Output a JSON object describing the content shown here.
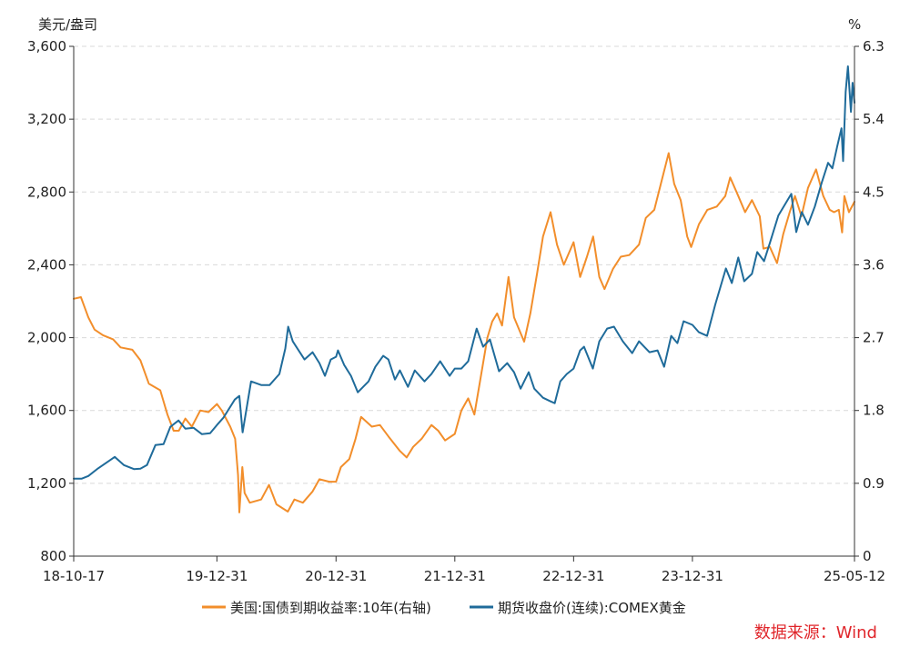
{
  "chart_data": {
    "type": "line",
    "left_axis_unit": "美元/盎司",
    "right_axis_unit": "%",
    "left_ylim": [
      800,
      3600
    ],
    "left_ticks": [
      "800",
      "1,200",
      "1,600",
      "2,000",
      "2,400",
      "2,800",
      "3,200",
      "3,600"
    ],
    "left_tick_values": [
      800,
      1200,
      1600,
      2000,
      2400,
      2800,
      3200,
      3600
    ],
    "right_ylim": [
      0,
      6.3
    ],
    "right_ticks": [
      "0",
      "0.9",
      "1.8",
      "2.7",
      "3.6",
      "4.5",
      "5.4",
      "6.3"
    ],
    "right_tick_values": [
      0,
      0.9,
      1.8,
      2.7,
      3.6,
      4.5,
      5.4,
      6.3
    ],
    "x_range": [
      "2018-10-17",
      "2025-05-12"
    ],
    "x_ticks": [
      {
        "label": "18-10-17",
        "date": "2018-10-17"
      },
      {
        "label": "19-12-31",
        "date": "2019-12-31"
      },
      {
        "label": "20-12-31",
        "date": "2020-12-31"
      },
      {
        "label": "21-12-31",
        "date": "2021-12-31"
      },
      {
        "label": "22-12-31",
        "date": "2022-12-31"
      },
      {
        "label": "23-12-31",
        "date": "2023-12-31"
      },
      {
        "label": "25-05-12",
        "date": "2025-05-12"
      }
    ],
    "grid": "horizontal dashed",
    "legend_position": "bottom",
    "series": [
      {
        "name": "美国:国债到期收益率:10年(右轴)",
        "axis": "right",
        "color": "#F28E2B",
        "x": [
          "2018-10-17",
          "2018-11-08",
          "2018-12-01",
          "2018-12-20",
          "2019-01-15",
          "2019-02-15",
          "2019-03-10",
          "2019-04-15",
          "2019-05-10",
          "2019-06-05",
          "2019-07-10",
          "2019-08-01",
          "2019-08-20",
          "2019-09-05",
          "2019-09-25",
          "2019-10-15",
          "2019-11-10",
          "2019-12-05",
          "2019-12-31",
          "2020-01-15",
          "2020-02-10",
          "2020-02-25",
          "2020-03-05",
          "2020-03-09",
          "2020-03-18",
          "2020-03-25",
          "2020-04-10",
          "2020-05-15",
          "2020-06-08",
          "2020-07-01",
          "2020-08-05",
          "2020-08-25",
          "2020-09-20",
          "2020-10-20",
          "2020-11-10",
          "2020-12-10",
          "2020-12-31",
          "2021-01-15",
          "2021-02-10",
          "2021-03-01",
          "2021-03-18",
          "2021-04-20",
          "2021-05-15",
          "2021-06-10",
          "2021-07-15",
          "2021-08-05",
          "2021-08-25",
          "2021-09-20",
          "2021-10-20",
          "2021-11-10",
          "2021-12-01",
          "2021-12-31",
          "2022-01-20",
          "2022-02-10",
          "2022-03-01",
          "2022-03-20",
          "2022-04-10",
          "2022-04-25",
          "2022-05-10",
          "2022-05-25",
          "2022-06-14",
          "2022-07-01",
          "2022-08-01",
          "2022-08-20",
          "2022-09-10",
          "2022-09-28",
          "2022-10-21",
          "2022-11-10",
          "2022-12-01",
          "2022-12-31",
          "2023-01-20",
          "2023-02-10",
          "2023-03-01",
          "2023-03-20",
          "2023-04-05",
          "2023-05-01",
          "2023-05-25",
          "2023-06-20",
          "2023-07-20",
          "2023-08-10",
          "2023-09-05",
          "2023-09-25",
          "2023-10-19",
          "2023-11-05",
          "2023-11-25",
          "2023-12-15",
          "2023-12-27",
          "2024-01-20",
          "2024-02-15",
          "2024-03-15",
          "2024-04-10",
          "2024-04-25",
          "2024-05-20",
          "2024-06-10",
          "2024-07-01",
          "2024-07-25",
          "2024-08-05",
          "2024-08-25",
          "2024-09-16",
          "2024-10-05",
          "2024-10-25",
          "2024-11-10",
          "2024-11-30",
          "2024-12-20",
          "2025-01-14",
          "2025-02-05",
          "2025-02-25",
          "2025-03-10",
          "2025-03-25",
          "2025-04-04",
          "2025-04-11",
          "2025-04-25",
          "2025-05-12"
        ],
        "y": [
          3.18,
          3.2,
          2.95,
          2.8,
          2.73,
          2.68,
          2.58,
          2.55,
          2.42,
          2.13,
          2.05,
          1.75,
          1.55,
          1.55,
          1.7,
          1.6,
          1.8,
          1.78,
          1.88,
          1.8,
          1.6,
          1.45,
          1.0,
          0.54,
          1.1,
          0.78,
          0.66,
          0.7,
          0.88,
          0.64,
          0.55,
          0.7,
          0.66,
          0.8,
          0.95,
          0.92,
          0.92,
          1.1,
          1.2,
          1.45,
          1.72,
          1.6,
          1.62,
          1.48,
          1.3,
          1.22,
          1.35,
          1.45,
          1.62,
          1.55,
          1.43,
          1.51,
          1.8,
          1.95,
          1.75,
          2.2,
          2.7,
          2.9,
          3.0,
          2.85,
          3.45,
          2.95,
          2.65,
          3.0,
          3.5,
          3.95,
          4.25,
          3.85,
          3.6,
          3.88,
          3.45,
          3.7,
          3.95,
          3.45,
          3.3,
          3.55,
          3.7,
          3.72,
          3.85,
          4.18,
          4.28,
          4.6,
          4.98,
          4.6,
          4.4,
          3.95,
          3.82,
          4.1,
          4.28,
          4.32,
          4.45,
          4.68,
          4.45,
          4.25,
          4.4,
          4.2,
          3.8,
          3.82,
          3.62,
          3.98,
          4.25,
          4.45,
          4.2,
          4.55,
          4.78,
          4.45,
          4.28,
          4.25,
          4.28,
          4.0,
          4.45,
          4.25,
          4.38
        ]
      },
      {
        "name": "期货收盘价(连续):COMEX黄金",
        "axis": "left",
        "color": "#1F6B9A",
        "x": [
          "2018-10-17",
          "2018-11-10",
          "2018-12-01",
          "2018-12-31",
          "2019-01-31",
          "2019-02-20",
          "2019-03-20",
          "2019-04-20",
          "2019-05-10",
          "2019-05-30",
          "2019-06-25",
          "2019-07-20",
          "2019-08-10",
          "2019-09-04",
          "2019-09-25",
          "2019-10-20",
          "2019-11-15",
          "2019-12-10",
          "2019-12-31",
          "2020-01-20",
          "2020-02-24",
          "2020-03-09",
          "2020-03-19",
          "2020-04-14",
          "2020-05-15",
          "2020-06-10",
          "2020-07-10",
          "2020-07-28",
          "2020-08-06",
          "2020-08-20",
          "2020-09-25",
          "2020-10-20",
          "2020-11-10",
          "2020-11-27",
          "2020-12-15",
          "2020-12-31",
          "2021-01-06",
          "2021-01-25",
          "2021-02-15",
          "2021-03-08",
          "2021-04-10",
          "2021-05-01",
          "2021-05-25",
          "2021-06-10",
          "2021-06-30",
          "2021-07-15",
          "2021-08-09",
          "2021-08-30",
          "2021-09-29",
          "2021-10-20",
          "2021-11-16",
          "2021-12-15",
          "2021-12-31",
          "2022-01-20",
          "2022-02-10",
          "2022-03-08",
          "2022-03-28",
          "2022-04-18",
          "2022-05-16",
          "2022-06-10",
          "2022-07-01",
          "2022-07-21",
          "2022-08-15",
          "2022-09-01",
          "2022-09-28",
          "2022-10-21",
          "2022-11-03",
          "2022-11-20",
          "2022-12-10",
          "2022-12-31",
          "2023-01-20",
          "2023-02-01",
          "2023-02-28",
          "2023-03-20",
          "2023-04-13",
          "2023-05-04",
          "2023-05-31",
          "2023-06-29",
          "2023-07-20",
          "2023-08-21",
          "2023-09-15",
          "2023-10-05",
          "2023-10-27",
          "2023-11-15",
          "2023-12-04",
          "2023-12-31",
          "2024-01-20",
          "2024-02-14",
          "2024-03-10",
          "2024-04-12",
          "2024-04-30",
          "2024-05-20",
          "2024-06-07",
          "2024-07-01",
          "2024-07-17",
          "2024-08-07",
          "2024-08-25",
          "2024-09-20",
          "2024-10-30",
          "2024-11-14",
          "2024-12-01",
          "2024-12-20",
          "2025-01-10",
          "2025-01-31",
          "2025-02-20",
          "2025-03-05",
          "2025-03-20",
          "2025-04-02",
          "2025-04-07",
          "2025-04-15",
          "2025-04-22",
          "2025-05-01",
          "2025-05-06",
          "2025-05-12"
        ],
        "y": [
          1225,
          1225,
          1240,
          1282,
          1320,
          1345,
          1300,
          1278,
          1280,
          1300,
          1410,
          1415,
          1510,
          1545,
          1500,
          1505,
          1470,
          1475,
          1520,
          1560,
          1660,
          1680,
          1480,
          1760,
          1740,
          1740,
          1800,
          1940,
          2060,
          1980,
          1880,
          1920,
          1860,
          1790,
          1880,
          1895,
          1930,
          1850,
          1790,
          1700,
          1760,
          1840,
          1900,
          1880,
          1770,
          1820,
          1730,
          1820,
          1760,
          1800,
          1870,
          1790,
          1830,
          1830,
          1870,
          2050,
          1950,
          1990,
          1815,
          1860,
          1810,
          1720,
          1810,
          1720,
          1670,
          1650,
          1640,
          1760,
          1800,
          1830,
          1930,
          1950,
          1830,
          1980,
          2050,
          2060,
          1980,
          1915,
          1980,
          1920,
          1930,
          1840,
          2010,
          1970,
          2090,
          2070,
          2030,
          2010,
          2180,
          2380,
          2300,
          2440,
          2310,
          2350,
          2470,
          2420,
          2520,
          2670,
          2790,
          2580,
          2690,
          2620,
          2720,
          2850,
          2960,
          2930,
          3050,
          3150,
          2970,
          3350,
          3490,
          3240,
          3400,
          3290
        ]
      }
    ]
  },
  "legend": {
    "series_a": "美国:国债到期收益率:10年(右轴)",
    "series_b": "期货收盘价(连续):COMEX黄金"
  },
  "source": "数据来源：Wind",
  "colors": {
    "yield": "#F28E2B",
    "gold": "#1F6B9A",
    "axis": "#333333",
    "grid": "#D9D9D9",
    "source": "#E0262B"
  }
}
